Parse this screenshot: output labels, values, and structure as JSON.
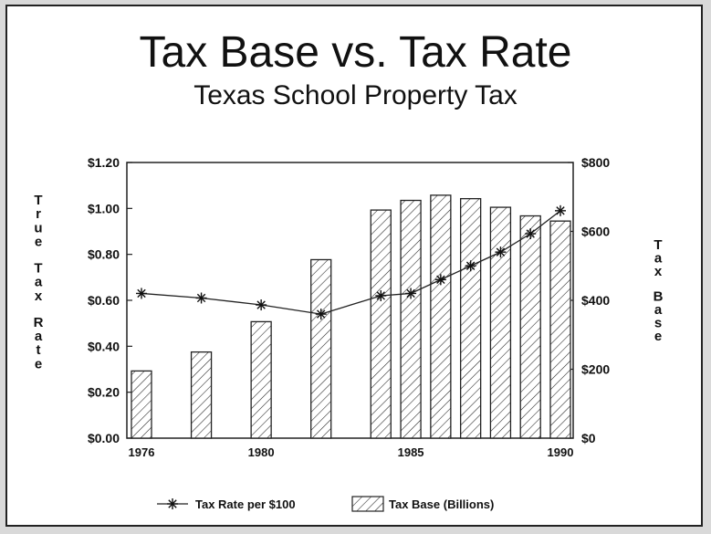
{
  "chart_data": {
    "type": "bar",
    "title": "Tax Base vs. Tax Rate",
    "subtitle": "Texas School Property Tax",
    "x_ticks": [
      "1976",
      "1980",
      "1985",
      "1990"
    ],
    "xlim": [
      1976,
      1990
    ],
    "left_axis": {
      "label": "True Tax Rate",
      "ylim": [
        0,
        1.2
      ],
      "ticks": [
        "$0.00",
        "$0.20",
        "$0.40",
        "$0.60",
        "$0.80",
        "$1.00",
        "$1.20"
      ]
    },
    "right_axis": {
      "label": "Tax Base",
      "ylim": [
        0,
        800
      ],
      "ticks": [
        "$0",
        "$200",
        "$400",
        "$600",
        "$800"
      ]
    },
    "legend_position": "bottom",
    "series": [
      {
        "name": "Tax Base (Billions)",
        "type": "bar",
        "axis": "right",
        "hatched": true,
        "x": [
          1976,
          1978,
          1980,
          1982,
          1984,
          1985,
          1986,
          1987,
          1988,
          1989,
          1990
        ],
        "values": [
          195,
          250,
          338,
          518,
          662,
          690,
          705,
          695,
          670,
          645,
          630
        ]
      },
      {
        "name": "Tax Rate per $100",
        "type": "line",
        "axis": "left",
        "marker": "*",
        "x": [
          1976,
          1978,
          1980,
          1982,
          1984,
          1985,
          1986,
          1987,
          1988,
          1989,
          1990
        ],
        "values": [
          0.63,
          0.61,
          0.58,
          0.54,
          0.62,
          0.63,
          0.69,
          0.75,
          0.81,
          0.89,
          0.99
        ]
      }
    ]
  }
}
